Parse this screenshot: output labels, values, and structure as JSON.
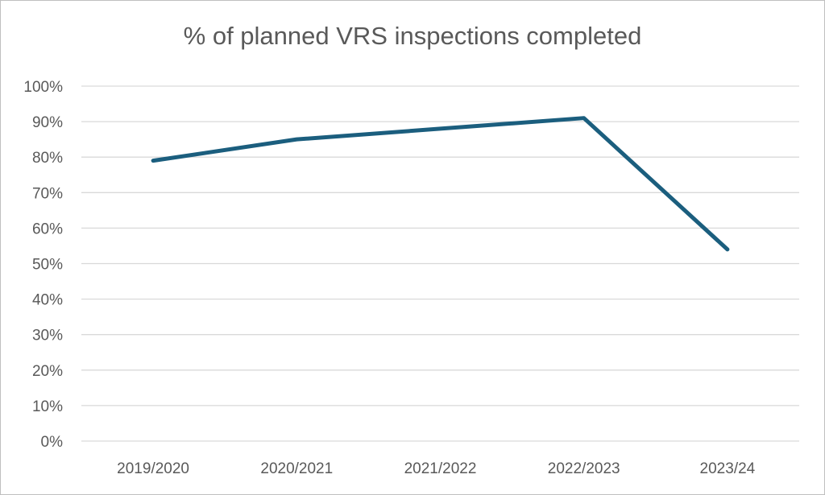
{
  "chart_data": {
    "type": "line",
    "title": "% of planned VRS inspections completed",
    "categories": [
      "2019/2020",
      "2020/2021",
      "2021/2022",
      "2022/2023",
      "2023/24"
    ],
    "series": [
      {
        "values": [
          79,
          85,
          88,
          91,
          54
        ]
      }
    ],
    "ylim": [
      0,
      100
    ],
    "yticks": [
      "0%",
      "10%",
      "20%",
      "30%",
      "40%",
      "50%",
      "60%",
      "70%",
      "80%",
      "90%",
      "100%"
    ],
    "grid": true,
    "legend": "none",
    "colors": {
      "line": "#1b5e7e",
      "grid": "#d9d9d9",
      "text": "#595959"
    }
  }
}
